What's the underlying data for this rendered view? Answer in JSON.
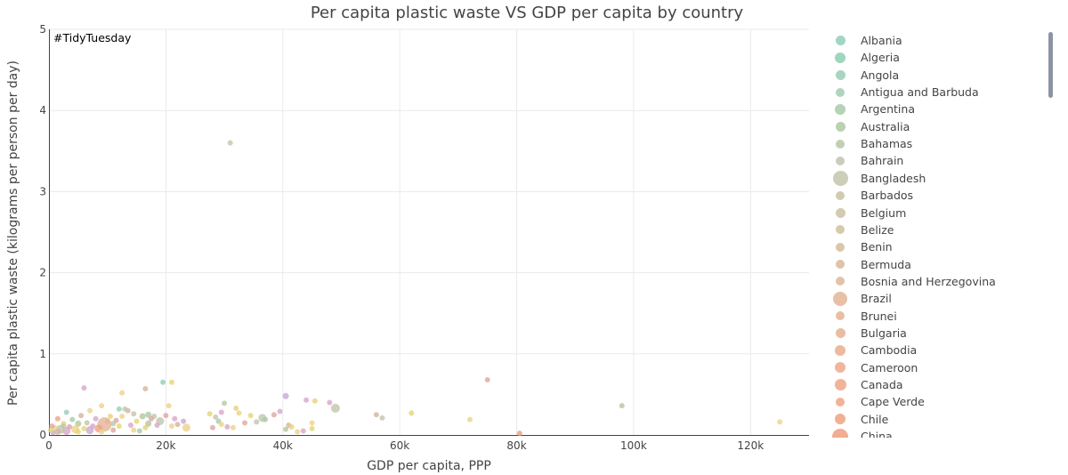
{
  "chart_data": {
    "type": "scatter",
    "title": "Per capita plastic waste VS GDP per capita by country",
    "annotation": "#TidyTuesday",
    "xlabel": "GDP per capita, PPP",
    "ylabel": "Per capita plastic waste (kilograms per person per day)",
    "xlim": [
      0,
      130000
    ],
    "ylim": [
      0,
      5
    ],
    "x_ticks": [
      0,
      20000,
      40000,
      60000,
      80000,
      100000,
      120000
    ],
    "x_tick_labels": [
      "0",
      "20k",
      "40k",
      "60k",
      "80k",
      "100k",
      "120k"
    ],
    "y_ticks": [
      0,
      1,
      2,
      3,
      4,
      5
    ],
    "y_tick_labels": [
      "0",
      "1",
      "2",
      "3",
      "4",
      "5"
    ],
    "grid": true,
    "legend_placement": "right",
    "legend": [
      {
        "name": "Albania",
        "color": "#8fcfbb",
        "size": 11
      },
      {
        "name": "Algeria",
        "color": "#8fcfb3",
        "size": 12
      },
      {
        "name": "Angola",
        "color": "#9acdb5",
        "size": 11
      },
      {
        "name": "Antigua and Barbuda",
        "color": "#a3cdb1",
        "size": 10
      },
      {
        "name": "Argentina",
        "color": "#a8cba9",
        "size": 12
      },
      {
        "name": "Australia",
        "color": "#aec9a5",
        "size": 11
      },
      {
        "name": "Bahamas",
        "color": "#b8c7a8",
        "size": 10
      },
      {
        "name": "Bahrain",
        "color": "#bec6ad",
        "size": 10
      },
      {
        "name": "Bangladesh",
        "color": "#c3c5ab",
        "size": 17
      },
      {
        "name": "Barbados",
        "color": "#c8c3a6",
        "size": 10
      },
      {
        "name": "Belgium",
        "color": "#cdc1a3",
        "size": 11
      },
      {
        "name": "Belize",
        "color": "#d0c09e",
        "size": 10
      },
      {
        "name": "Benin",
        "color": "#d3bd9c",
        "size": 10
      },
      {
        "name": "Bermuda",
        "color": "#d8b99b",
        "size": 10
      },
      {
        "name": "Bosnia and Herzegovina",
        "color": "#dcb899",
        "size": 10
      },
      {
        "name": "Brazil",
        "color": "#e3b597",
        "size": 16
      },
      {
        "name": "Brunei",
        "color": "#e6b294",
        "size": 10
      },
      {
        "name": "Bulgaria",
        "color": "#e8b090",
        "size": 11
      },
      {
        "name": "Cambodia",
        "color": "#eaad8e",
        "size": 12
      },
      {
        "name": "Cameroon",
        "color": "#eca98b",
        "size": 12
      },
      {
        "name": "Canada",
        "color": "#eea688",
        "size": 13
      },
      {
        "name": "Cape Verde",
        "color": "#efa486",
        "size": 10
      },
      {
        "name": "Chile",
        "color": "#efa283",
        "size": 12
      },
      {
        "name": "China",
        "color": "#f09f80",
        "size": 18
      }
    ],
    "points": [
      {
        "x": 31000,
        "y": 3.6,
        "color": "#c9c3a6",
        "size": 6
      },
      {
        "x": 75000,
        "y": 0.68,
        "color": "#e0a5a1",
        "size": 6
      },
      {
        "x": 98000,
        "y": 0.36,
        "color": "#b7c79a",
        "size": 6
      },
      {
        "x": 125000,
        "y": 0.16,
        "color": "#eed28a",
        "size": 6
      },
      {
        "x": 80500,
        "y": 0.02,
        "color": "#ef9c7d",
        "size": 6
      },
      {
        "x": 72000,
        "y": 0.19,
        "color": "#eed28a",
        "size": 6
      },
      {
        "x": 62000,
        "y": 0.27,
        "color": "#e6d474",
        "size": 6
      },
      {
        "x": 56000,
        "y": 0.25,
        "color": "#d6b49c",
        "size": 6
      },
      {
        "x": 57000,
        "y": 0.21,
        "color": "#c3c5ab",
        "size": 6
      },
      {
        "x": 49000,
        "y": 0.33,
        "color": "#c3c5ab",
        "size": 10
      },
      {
        "x": 48000,
        "y": 0.4,
        "color": "#d9a6c9",
        "size": 6
      },
      {
        "x": 45500,
        "y": 0.42,
        "color": "#e6d474",
        "size": 6
      },
      {
        "x": 44000,
        "y": 0.43,
        "color": "#d9a6c9",
        "size": 6
      },
      {
        "x": 45000,
        "y": 0.15,
        "color": "#eed28a",
        "size": 6
      },
      {
        "x": 45000,
        "y": 0.08,
        "color": "#e6d474",
        "size": 6
      },
      {
        "x": 43500,
        "y": 0.05,
        "color": "#d9a6c9",
        "size": 6
      },
      {
        "x": 42500,
        "y": 0.04,
        "color": "#eed28a",
        "size": 6
      },
      {
        "x": 40500,
        "y": 0.48,
        "color": "#c9a9d6",
        "size": 7
      },
      {
        "x": 41000,
        "y": 0.12,
        "color": "#d6b49c",
        "size": 6
      },
      {
        "x": 41500,
        "y": 0.1,
        "color": "#e6d474",
        "size": 6
      },
      {
        "x": 40500,
        "y": 0.07,
        "color": "#b7c79a",
        "size": 6
      },
      {
        "x": 39500,
        "y": 0.29,
        "color": "#d9a6c9",
        "size": 6
      },
      {
        "x": 38500,
        "y": 0.25,
        "color": "#e0a5a1",
        "size": 6
      },
      {
        "x": 36500,
        "y": 0.21,
        "color": "#c3c5ab",
        "size": 9
      },
      {
        "x": 37000,
        "y": 0.19,
        "color": "#a8cba9",
        "size": 6
      },
      {
        "x": 35500,
        "y": 0.16,
        "color": "#bec6ad",
        "size": 6
      },
      {
        "x": 34500,
        "y": 0.24,
        "color": "#e6d474",
        "size": 6
      },
      {
        "x": 33500,
        "y": 0.15,
        "color": "#e0a5a1",
        "size": 6
      },
      {
        "x": 32000,
        "y": 0.33,
        "color": "#e6d474",
        "size": 6
      },
      {
        "x": 32500,
        "y": 0.27,
        "color": "#eed28a",
        "size": 6
      },
      {
        "x": 30000,
        "y": 0.39,
        "color": "#b8c7a8",
        "size": 6
      },
      {
        "x": 29500,
        "y": 0.28,
        "color": "#d9a6c9",
        "size": 6
      },
      {
        "x": 28500,
        "y": 0.22,
        "color": "#c3c5ab",
        "size": 6
      },
      {
        "x": 29000,
        "y": 0.17,
        "color": "#a8cba9",
        "size": 6
      },
      {
        "x": 27500,
        "y": 0.26,
        "color": "#e6d474",
        "size": 6
      },
      {
        "x": 29500,
        "y": 0.13,
        "color": "#eed28a",
        "size": 6
      },
      {
        "x": 30500,
        "y": 0.1,
        "color": "#d9a6c9",
        "size": 6
      },
      {
        "x": 31500,
        "y": 0.09,
        "color": "#eed28a",
        "size": 6
      },
      {
        "x": 28000,
        "y": 0.09,
        "color": "#e0a5a1",
        "size": 6
      },
      {
        "x": 21000,
        "y": 0.65,
        "color": "#e6d474",
        "size": 6
      },
      {
        "x": 19500,
        "y": 0.65,
        "color": "#8fcfbb",
        "size": 6
      },
      {
        "x": 16500,
        "y": 0.57,
        "color": "#d6b49c",
        "size": 6
      },
      {
        "x": 12500,
        "y": 0.52,
        "color": "#eed28a",
        "size": 6
      },
      {
        "x": 6000,
        "y": 0.58,
        "color": "#d9a6c9",
        "size": 6
      },
      {
        "x": 20500,
        "y": 0.36,
        "color": "#eed28a",
        "size": 6
      },
      {
        "x": 20000,
        "y": 0.24,
        "color": "#e0a5a1",
        "size": 6
      },
      {
        "x": 21500,
        "y": 0.2,
        "color": "#d9a6c9",
        "size": 6
      },
      {
        "x": 23000,
        "y": 0.17,
        "color": "#c9a9d6",
        "size": 6
      },
      {
        "x": 22000,
        "y": 0.13,
        "color": "#d6b49c",
        "size": 6
      },
      {
        "x": 23500,
        "y": 0.09,
        "color": "#eed28a",
        "size": 9
      },
      {
        "x": 19000,
        "y": 0.17,
        "color": "#bec6ad",
        "size": 9
      },
      {
        "x": 18000,
        "y": 0.23,
        "color": "#c3c5ab",
        "size": 6
      },
      {
        "x": 17500,
        "y": 0.2,
        "color": "#e0a5a1",
        "size": 6
      },
      {
        "x": 17000,
        "y": 0.25,
        "color": "#a8cba9",
        "size": 7
      },
      {
        "x": 16000,
        "y": 0.23,
        "color": "#b7c79a",
        "size": 7
      },
      {
        "x": 15000,
        "y": 0.17,
        "color": "#e6d474",
        "size": 6
      },
      {
        "x": 14500,
        "y": 0.26,
        "color": "#c3c5ab",
        "size": 6
      },
      {
        "x": 14000,
        "y": 0.12,
        "color": "#d9a6c9",
        "size": 6
      },
      {
        "x": 13500,
        "y": 0.3,
        "color": "#d6b49c",
        "size": 6
      },
      {
        "x": 13000,
        "y": 0.32,
        "color": "#c3c5ab",
        "size": 6
      },
      {
        "x": 12000,
        "y": 0.32,
        "color": "#9acdb5",
        "size": 6
      },
      {
        "x": 12500,
        "y": 0.23,
        "color": "#eed28a",
        "size": 6
      },
      {
        "x": 11500,
        "y": 0.18,
        "color": "#e0a5a1",
        "size": 6
      },
      {
        "x": 11000,
        "y": 0.14,
        "color": "#b8c7a8",
        "size": 6
      },
      {
        "x": 10500,
        "y": 0.23,
        "color": "#e6d474",
        "size": 6
      },
      {
        "x": 10000,
        "y": 0.17,
        "color": "#d6b49c",
        "size": 6
      },
      {
        "x": 9000,
        "y": 0.36,
        "color": "#eed28a",
        "size": 6
      },
      {
        "x": 9500,
        "y": 0.13,
        "color": "#e3b597",
        "size": 16
      },
      {
        "x": 8500,
        "y": 0.08,
        "color": "#efa283",
        "size": 9
      },
      {
        "x": 8000,
        "y": 0.2,
        "color": "#d9a6c9",
        "size": 6
      },
      {
        "x": 7500,
        "y": 0.11,
        "color": "#d9a6c9",
        "size": 6
      },
      {
        "x": 7000,
        "y": 0.06,
        "color": "#c9a9d6",
        "size": 9
      },
      {
        "x": 6500,
        "y": 0.15,
        "color": "#bec6ad",
        "size": 6
      },
      {
        "x": 6000,
        "y": 0.08,
        "color": "#e6d474",
        "size": 6
      },
      {
        "x": 5500,
        "y": 0.24,
        "color": "#d6b49c",
        "size": 6
      },
      {
        "x": 5000,
        "y": 0.14,
        "color": "#b7c79a",
        "size": 7
      },
      {
        "x": 4500,
        "y": 0.07,
        "color": "#eed28a",
        "size": 9
      },
      {
        "x": 4000,
        "y": 0.19,
        "color": "#a8cba9",
        "size": 6
      },
      {
        "x": 3500,
        "y": 0.1,
        "color": "#e0a5a1",
        "size": 6
      },
      {
        "x": 3000,
        "y": 0.28,
        "color": "#9acdb5",
        "size": 6
      },
      {
        "x": 3000,
        "y": 0.05,
        "color": "#d9a6c9",
        "size": 9
      },
      {
        "x": 2500,
        "y": 0.14,
        "color": "#e6d474",
        "size": 6
      },
      {
        "x": 2000,
        "y": 0.07,
        "color": "#c3c5ab",
        "size": 10
      },
      {
        "x": 1500,
        "y": 0.2,
        "color": "#efa283",
        "size": 6
      },
      {
        "x": 1500,
        "y": 0.04,
        "color": "#d6b49c",
        "size": 7
      },
      {
        "x": 1000,
        "y": 0.09,
        "color": "#eed28a",
        "size": 6
      },
      {
        "x": 700,
        "y": 0.03,
        "color": "#c9a9d6",
        "size": 6
      },
      {
        "x": 500,
        "y": 0.11,
        "color": "#e0a5a1",
        "size": 6
      },
      {
        "x": 300,
        "y": 0.06,
        "color": "#e6d474",
        "size": 6
      },
      {
        "x": 15500,
        "y": 0.05,
        "color": "#a8cba9",
        "size": 6
      },
      {
        "x": 16500,
        "y": 0.09,
        "color": "#e6d474",
        "size": 6
      },
      {
        "x": 18500,
        "y": 0.12,
        "color": "#d9a6c9",
        "size": 6
      },
      {
        "x": 21000,
        "y": 0.11,
        "color": "#eed28a",
        "size": 6
      },
      {
        "x": 12000,
        "y": 0.11,
        "color": "#e6d474",
        "size": 6
      },
      {
        "x": 7000,
        "y": 0.3,
        "color": "#eed28a",
        "size": 6
      },
      {
        "x": 5000,
        "y": 0.04,
        "color": "#e6d474",
        "size": 6
      },
      {
        "x": 9000,
        "y": 0.04,
        "color": "#eed28a",
        "size": 6
      },
      {
        "x": 17000,
        "y": 0.14,
        "color": "#b7c79a",
        "size": 7
      },
      {
        "x": 14500,
        "y": 0.06,
        "color": "#eed28a",
        "size": 6
      },
      {
        "x": 11000,
        "y": 0.06,
        "color": "#e0a5a1",
        "size": 6
      },
      {
        "x": 2500,
        "y": 0.11,
        "color": "#bec6ad",
        "size": 6
      }
    ]
  }
}
